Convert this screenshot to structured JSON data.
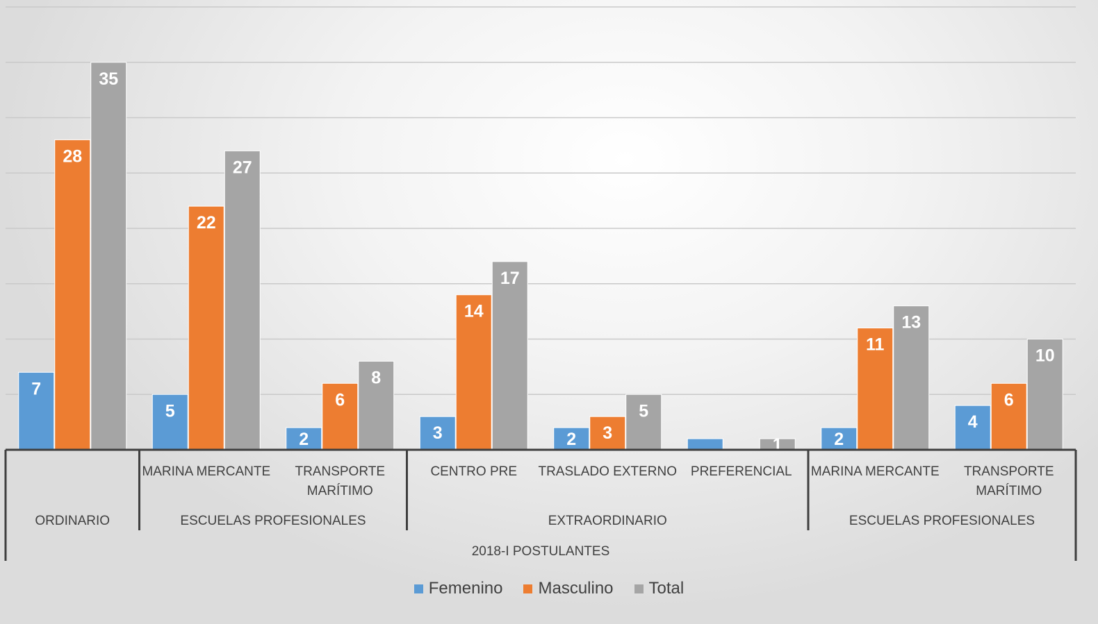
{
  "chart_data": {
    "type": "bar",
    "title": "",
    "xlabel": "",
    "ylabel": "",
    "ylim": [
      0,
      40
    ],
    "grid": true,
    "legend_position": "bottom",
    "categories": [
      "ORDINARIO",
      "MARINA MERCANTE",
      "TRANSPORTE MARÍTIMO",
      "CENTRO PRE",
      "TRASLADO EXTERNO",
      "PREFERENCIAL",
      "MARINA MERCANTE",
      "TRANSPORTE MARÍTIMO"
    ],
    "category_labels": [
      [
        ""
      ],
      [
        "MARINA MERCANTE"
      ],
      [
        "TRANSPORTE",
        "MARÍTIMO"
      ],
      [
        "CENTRO PRE"
      ],
      [
        "TRASLADO EXTERNO"
      ],
      [
        "PREFERENCIAL"
      ],
      [
        "MARINA MERCANTE"
      ],
      [
        "TRANSPORTE",
        "MARÍTIMO"
      ]
    ],
    "groups": [
      {
        "label": "ORDINARIO",
        "span": [
          0,
          0
        ]
      },
      {
        "label": "ESCUELAS PROFESIONALES",
        "span": [
          1,
          2
        ]
      },
      {
        "label": "EXTRAORDINARIO",
        "span": [
          3,
          5
        ]
      },
      {
        "label": "ESCUELAS PROFESIONALES",
        "span": [
          6,
          7
        ]
      }
    ],
    "top_group_label": "2018-I POSTULANTES",
    "series": [
      {
        "name": "Femenino",
        "color": "#5b9bd5",
        "values": [
          7,
          5,
          2,
          3,
          2,
          1,
          2,
          4
        ]
      },
      {
        "name": "Masculino",
        "color": "#ed7d31",
        "values": [
          28,
          22,
          6,
          14,
          3,
          null,
          11,
          6
        ]
      },
      {
        "name": "Total",
        "color": "#a5a5a5",
        "values": [
          35,
          27,
          8,
          17,
          5,
          1,
          13,
          10
        ]
      }
    ],
    "data_labels": [
      [
        "7",
        "5",
        "2",
        "3",
        "2",
        "",
        "2",
        "4"
      ],
      [
        "28",
        "22",
        "6",
        "14",
        "3",
        "",
        "11",
        "6"
      ],
      [
        "35",
        "27",
        "8",
        "17",
        "5",
        "1",
        "13",
        "10"
      ]
    ]
  }
}
